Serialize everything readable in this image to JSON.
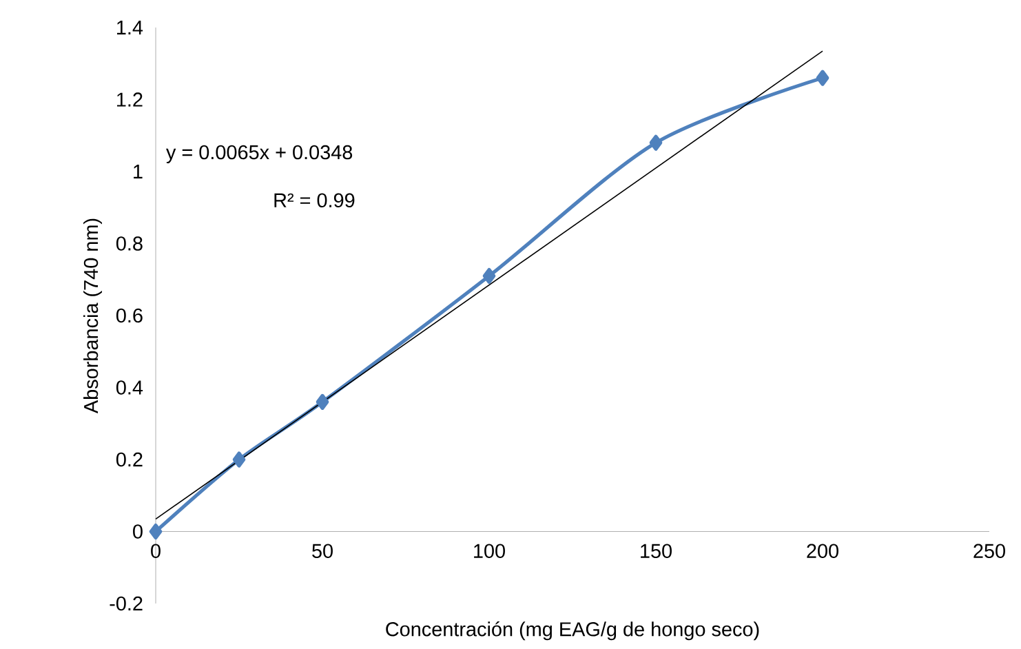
{
  "chart_data": {
    "type": "line",
    "xlabel": "Concentración (mg EAG/g de hongo seco)",
    "ylabel": "Absorbancia  (740 nm)",
    "annotations": [
      "y = 0.0065x + 0.0348",
      "R² = 0.99"
    ],
    "marker": "diamond",
    "xlim": [
      0,
      250
    ],
    "xticks": [
      0,
      50,
      100,
      150,
      200,
      250
    ],
    "ylim": [
      -0.2,
      1.4
    ],
    "yticks": [
      -0.2,
      0,
      0.2,
      0.4,
      0.6,
      0.8,
      1,
      1.2,
      1.4
    ],
    "series": [
      {
        "color": "#4f81bd",
        "x": [
          0,
          25,
          50,
          100,
          150,
          200
        ],
        "values": [
          0,
          0.2,
          0.36,
          0.71,
          1.08,
          1.26
        ]
      },
      {
        "color": "#000000",
        "marker": "none",
        "x": [
          0,
          200
        ],
        "values": [
          0.0348,
          1.3348
        ]
      }
    ]
  }
}
